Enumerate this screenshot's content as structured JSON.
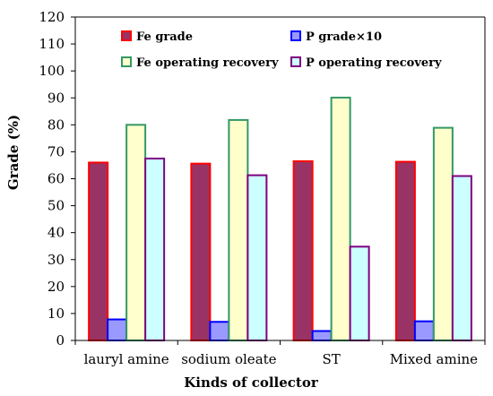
{
  "chart_data": {
    "type": "bar",
    "xlabel": "Kinds of collector",
    "ylabel": "Grade  (%)",
    "ylim": [
      0,
      120
    ],
    "y_ticks": [
      0,
      10,
      20,
      30,
      40,
      50,
      60,
      70,
      80,
      90,
      100,
      110,
      120
    ],
    "grid": false,
    "legend_position": "top inside",
    "categories": [
      "lauryl amine",
      "sodium oleate",
      "ST",
      "Mixed amine"
    ],
    "series": [
      {
        "name": "Fe grade",
        "fill": "#993366",
        "stroke": "#ff0000",
        "values": [
          66.0,
          65.6,
          66.5,
          66.3
        ]
      },
      {
        "name": "P grade×10",
        "fill": "#9999ff",
        "stroke": "#0000ff",
        "values": [
          7.8,
          6.9,
          3.5,
          7.1
        ]
      },
      {
        "name": "Fe operating recovery",
        "fill": "#ffffcc",
        "stroke": "#339966",
        "values": [
          80.0,
          81.8,
          90.1,
          78.9
        ]
      },
      {
        "name": "P operating recovery",
        "fill": "#ccffff",
        "stroke": "#800080",
        "values": [
          67.5,
          61.3,
          34.8,
          61.0
        ]
      }
    ]
  }
}
